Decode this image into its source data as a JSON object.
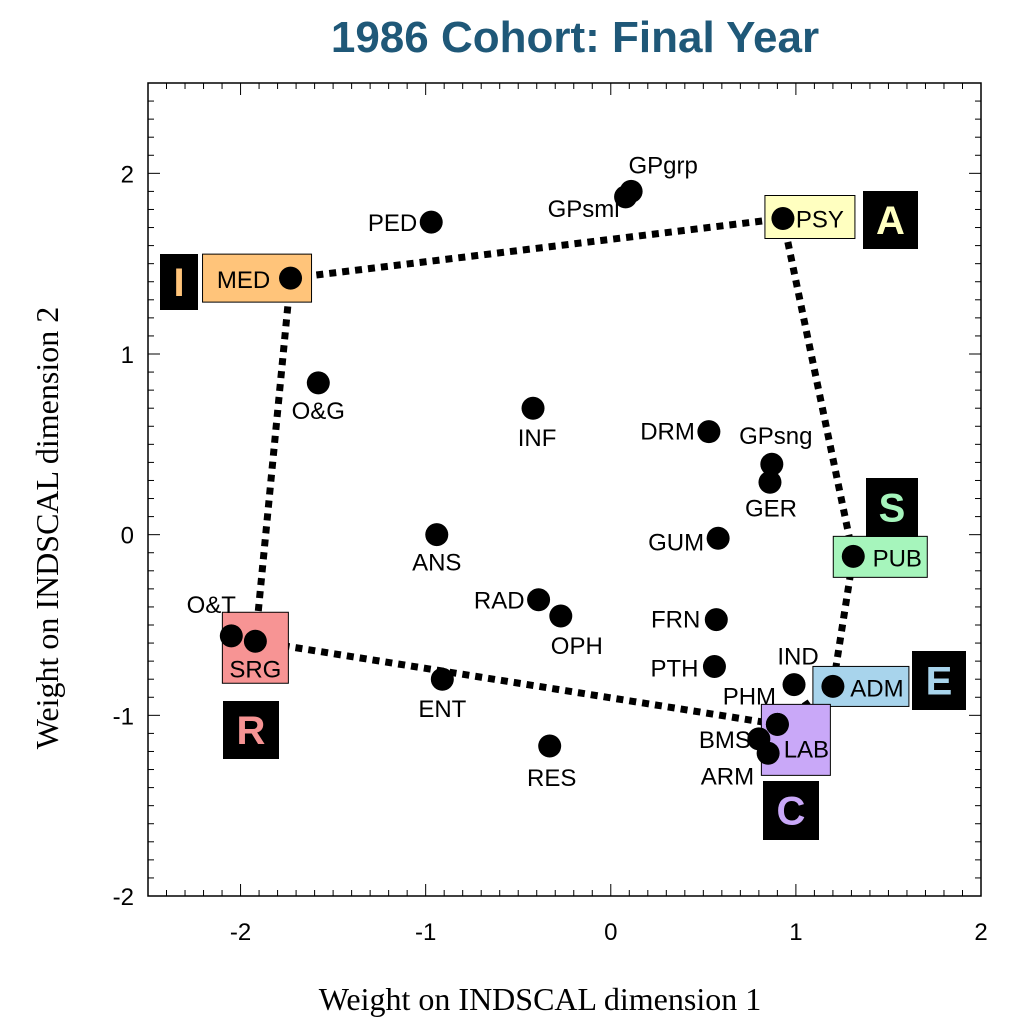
{
  "chart_data": {
    "type": "scatter",
    "title": "1986 Cohort: Final Year",
    "xlabel": "Weight on INDSCAL dimension 1",
    "ylabel": "Weight on INDSCAL dimension 2",
    "xlim": [
      -2.5,
      2
    ],
    "ylim": [
      -2,
      2.5
    ],
    "xticks": [
      -2,
      -1,
      0,
      1,
      2
    ],
    "yticks": [
      -2,
      -1,
      0,
      1,
      2
    ],
    "xtick_labels": [
      "-2",
      "-1",
      "0",
      "1",
      "2"
    ],
    "ytick_labels": [
      "-2",
      "-1",
      "0",
      "1",
      "2"
    ],
    "grid": false,
    "points": [
      {
        "label": "MED",
        "x": -1.73,
        "y": 1.42
      },
      {
        "label": "PSY",
        "x": 0.93,
        "y": 1.75
      },
      {
        "label": "PUB",
        "x": 1.31,
        "y": -0.12
      },
      {
        "label": "ADM",
        "x": 1.2,
        "y": -0.84
      },
      {
        "label": "LAB",
        "x": 0.9,
        "y": -1.05
      },
      {
        "label": "SRG",
        "x": -1.92,
        "y": -0.59
      },
      {
        "label": "GPgrp",
        "x": 0.11,
        "y": 1.9
      },
      {
        "label": "GPsml",
        "x": 0.08,
        "y": 1.87
      },
      {
        "label": "PED",
        "x": -0.97,
        "y": 1.73
      },
      {
        "label": "O&G",
        "x": -1.58,
        "y": 0.84
      },
      {
        "label": "INF",
        "x": -0.42,
        "y": 0.7
      },
      {
        "label": "DRM",
        "x": 0.53,
        "y": 0.57
      },
      {
        "label": "GPsng",
        "x": 0.87,
        "y": 0.39
      },
      {
        "label": "GER",
        "x": 0.86,
        "y": 0.29
      },
      {
        "label": "ANS",
        "x": -0.94,
        "y": 0.0
      },
      {
        "label": "GUM",
        "x": 0.58,
        "y": -0.02
      },
      {
        "label": "RAD",
        "x": -0.39,
        "y": -0.36
      },
      {
        "label": "OPH",
        "x": -0.27,
        "y": -0.45
      },
      {
        "label": "FRN",
        "x": 0.57,
        "y": -0.47
      },
      {
        "label": "PTH",
        "x": 0.56,
        "y": -0.73
      },
      {
        "label": "IND",
        "x": 0.99,
        "y": -0.83
      },
      {
        "label": "PHM",
        "x": 0.9,
        "y": -1.05
      },
      {
        "label": "BMS",
        "x": 0.8,
        "y": -1.13
      },
      {
        "label": "ARM",
        "x": 0.85,
        "y": -1.21
      },
      {
        "label": "O&T",
        "x": -2.05,
        "y": -0.56
      },
      {
        "label": "ENT",
        "x": -0.91,
        "y": -0.8
      },
      {
        "label": "RES",
        "x": -0.33,
        "y": -1.17
      }
    ],
    "hull": [
      "MED",
      "PSY",
      "PUB",
      "ADM",
      "LAB",
      "SRG"
    ],
    "boxes": [
      {
        "label": "MED",
        "color": "#ffc47a"
      },
      {
        "label": "PSY",
        "color": "#ffffc0"
      },
      {
        "label": "PUB",
        "color": "#a6f5bc"
      },
      {
        "label": "ADM",
        "color": "#a8d4ec"
      },
      {
        "label": "LAB",
        "color": "#c9a8f8"
      },
      {
        "label": "SRG",
        "color": "#f79494"
      }
    ],
    "letters": [
      {
        "text": "I",
        "color": "#ffc47a"
      },
      {
        "text": "A",
        "color": "#ffffc0"
      },
      {
        "text": "S",
        "color": "#a6f5bc"
      },
      {
        "text": "E",
        "color": "#a8d4ec"
      },
      {
        "text": "C",
        "color": "#c9a8f8"
      },
      {
        "text": "R",
        "color": "#f79494"
      }
    ]
  }
}
